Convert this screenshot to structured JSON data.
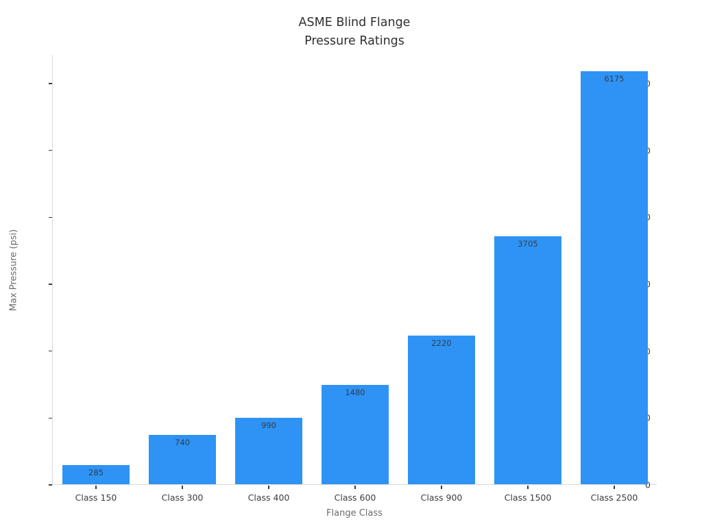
{
  "chart_data": {
    "type": "bar",
    "title": "ASME Blind Flange\nPressure Ratings",
    "title_lines": [
      "ASME Blind Flange",
      "Pressure Ratings"
    ],
    "categories": [
      "Class 150",
      "Class 300",
      "Class 400",
      "Class 600",
      "Class 900",
      "Class 1500",
      "Class 2500"
    ],
    "values": [
      285,
      740,
      990,
      1480,
      2220,
      3705,
      6175
    ],
    "value_labels": [
      "285",
      "740",
      "990",
      "1480",
      "2220",
      "3705",
      "6175"
    ],
    "xlabel": "Flange Class",
    "ylabel": "Max Pressure (psi)",
    "yticks": [
      0,
      1000,
      2000,
      3000,
      4000,
      5000,
      6000
    ],
    "ytick_labels": [
      "0",
      "1000",
      "2000",
      "3000",
      "4000",
      "5000",
      "6000"
    ],
    "ylim": [
      0,
      6430
    ],
    "grid": false,
    "legend": null,
    "colors": {
      "bar_fill": "#2e93f5",
      "value_label_text": "#333d47",
      "axis_line": "#d9d9d9",
      "tick_mark": "#3b3b3b",
      "tick_label_text": "#3b3b3b",
      "axis_title_text": "#6b6b6b",
      "title_text": "#2f2f2f",
      "background": "#ffffff"
    }
  }
}
